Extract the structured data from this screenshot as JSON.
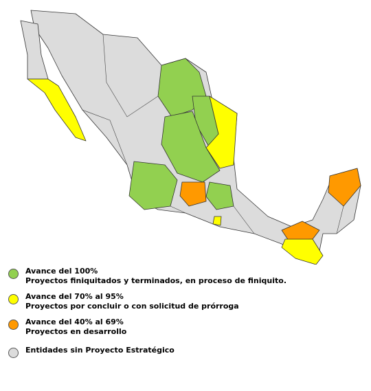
{
  "legend": [
    {
      "title": "Avance del 100%",
      "description": "Proyectos finiquitados y terminados, en proceso de finiquito.",
      "color": "#92d050"
    },
    {
      "title": "Avance del 70% al 95%",
      "description": "Proyectos por concluir o con solicitud de prórroga",
      "color": "#ffff00"
    },
    {
      "title": "Avance del 40% al 69%",
      "description": "Proyectos en desarrollo",
      "color": "#ff9900"
    },
    {
      "title": "Entidades sin Proyecto Estratégico",
      "color": "#dcdcdc"
    }
  ]
}
